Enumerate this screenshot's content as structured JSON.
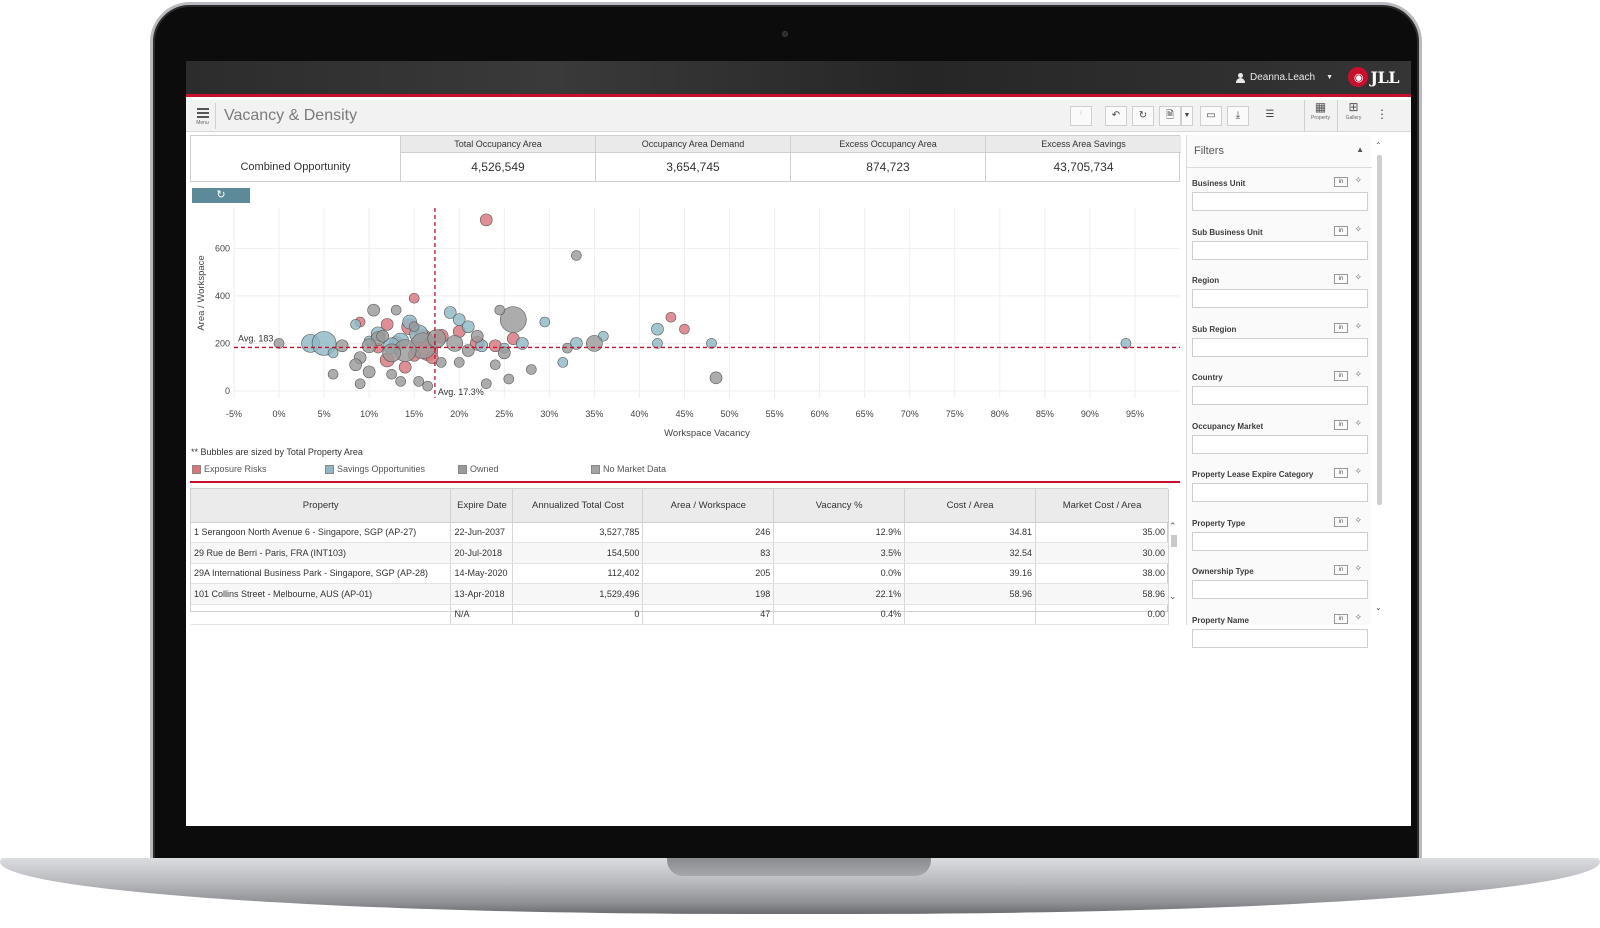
{
  "header": {
    "user_name": "Deanna.Leach",
    "logo_text": "JLL"
  },
  "title_bar": {
    "menu_label": "Menu",
    "page_title": "Vacancy & Density",
    "property_label": "Property",
    "gallery_label": "Gallery"
  },
  "summary": {
    "row_label": "Combined Opportunity",
    "columns": [
      {
        "header": "Total Occupancy Area",
        "value": "4,526,549"
      },
      {
        "header": "Occupancy Area Demand",
        "value": "3,654,745"
      },
      {
        "header": "Excess Occupancy Area",
        "value": "874,723"
      },
      {
        "header": "Excess Area Savings",
        "value": "43,705,734"
      }
    ]
  },
  "reset_zoom_icon": "refresh-icon",
  "chart_data": {
    "type": "scatter",
    "xlabel": "Workspace Vacancy",
    "ylabel": "Area / Workspace",
    "xlim": [
      -5,
      100
    ],
    "ylim": [
      -30,
      770
    ],
    "x_ticks": [
      "-5%",
      "0%",
      "5%",
      "10%",
      "15%",
      "20%",
      "25%",
      "30%",
      "35%",
      "40%",
      "45%",
      "50%",
      "55%",
      "60%",
      "65%",
      "70%",
      "75%",
      "80%",
      "85%",
      "90%",
      "95%"
    ],
    "y_ticks": [
      "0",
      "200",
      "400",
      "600"
    ],
    "grid": true,
    "avg_x": 17.3,
    "avg_y": 183,
    "avg_x_label": "Avg. 17.3%",
    "avg_y_label": "Avg. 183",
    "series": [
      {
        "name": "Exposure Risks",
        "color": "#d9757f",
        "points": [
          [
            23,
            720,
            6
          ],
          [
            15,
            390,
            5
          ],
          [
            14.5,
            270,
            8
          ],
          [
            12,
            280,
            6
          ],
          [
            16,
            220,
            9
          ],
          [
            18,
            230,
            7
          ],
          [
            13,
            200,
            7
          ],
          [
            16.5,
            170,
            10
          ],
          [
            12,
            130,
            7
          ],
          [
            14,
            100,
            6
          ],
          [
            17,
            140,
            6
          ],
          [
            20,
            250,
            6
          ],
          [
            22,
            200,
            7
          ],
          [
            24,
            190,
            6
          ],
          [
            26,
            220,
            6
          ],
          [
            43.5,
            310,
            5
          ],
          [
            45,
            260,
            5
          ],
          [
            9,
            290,
            5
          ],
          [
            11,
            180,
            5
          ],
          [
            15,
            150,
            6
          ]
        ]
      },
      {
        "name": "Savings Opportunities",
        "color": "#8fb8c4",
        "points": [
          [
            3.5,
            200,
            9
          ],
          [
            5,
            200,
            12
          ],
          [
            11,
            240,
            7
          ],
          [
            13.5,
            210,
            8
          ],
          [
            14.5,
            290,
            7
          ],
          [
            12.5,
            190,
            8
          ],
          [
            15.5,
            240,
            9
          ],
          [
            19,
            330,
            6
          ],
          [
            20,
            300,
            6
          ],
          [
            21,
            270,
            6
          ],
          [
            22.5,
            190,
            6
          ],
          [
            27,
            200,
            6
          ],
          [
            29.5,
            290,
            5
          ],
          [
            33,
            200,
            6
          ],
          [
            36,
            230,
            5
          ],
          [
            42,
            260,
            6
          ],
          [
            42,
            200,
            5
          ],
          [
            48,
            200,
            5
          ],
          [
            94,
            200,
            5
          ],
          [
            6,
            160,
            5
          ],
          [
            10,
            210,
            5
          ],
          [
            25,
            180,
            5
          ],
          [
            31.5,
            120,
            5
          ],
          [
            8.5,
            280,
            5
          ]
        ]
      },
      {
        "name": "Owned",
        "color": "#9a9a9a",
        "points": [
          [
            33,
            570,
            5
          ],
          [
            26,
            300,
            13
          ],
          [
            16,
            190,
            13
          ],
          [
            14,
            170,
            11
          ],
          [
            12.5,
            160,
            9
          ],
          [
            17.5,
            220,
            9
          ],
          [
            19.5,
            200,
            8
          ],
          [
            11,
            220,
            7
          ],
          [
            10,
            190,
            7
          ],
          [
            9,
            140,
            6
          ],
          [
            8.5,
            110,
            6
          ],
          [
            10,
            80,
            6
          ],
          [
            7,
            190,
            6
          ],
          [
            6,
            70,
            5
          ],
          [
            9,
            30,
            5
          ],
          [
            12.5,
            70,
            5
          ],
          [
            13.5,
            40,
            5
          ],
          [
            15.5,
            40,
            5
          ],
          [
            16.5,
            20,
            5
          ],
          [
            23,
            30,
            5
          ],
          [
            24,
            110,
            5
          ],
          [
            25,
            160,
            6
          ],
          [
            32,
            180,
            5
          ],
          [
            35,
            200,
            8
          ],
          [
            48.5,
            55,
            6
          ],
          [
            25.5,
            50,
            5
          ],
          [
            18,
            120,
            5
          ],
          [
            21,
            170,
            6
          ],
          [
            20,
            120,
            5
          ],
          [
            22,
            230,
            6
          ],
          [
            24.5,
            340,
            5
          ],
          [
            10.5,
            340,
            6
          ],
          [
            13,
            340,
            5
          ],
          [
            0,
            200,
            5
          ],
          [
            11.5,
            230,
            6
          ],
          [
            15,
            270,
            5
          ],
          [
            28,
            90,
            5
          ]
        ]
      },
      {
        "name": "No Market Data",
        "color": "#a3a3a3",
        "points": []
      }
    ],
    "legend_position": "bottom-left",
    "note": "** Bubbles are sized by Total Property Area"
  },
  "legend_colors": {
    "exposure": "#d9757f",
    "savings": "#8fb8c4",
    "owned": "#9a9a9a",
    "no_market": "#a3a3a3"
  },
  "table": {
    "headers": [
      "Property",
      "Expire Date",
      "Annualized Total Cost",
      "Area / Workspace",
      "Vacancy %",
      "Cost / Area",
      "Market Cost / Area"
    ],
    "rows": [
      [
        "1 Serangoon North Avenue 6 - Singapore, SGP (AP-27)",
        "22-Jun-2037",
        "3,527,785",
        "246",
        "12.9%",
        "34.81",
        "35.00"
      ],
      [
        "29 Rue de Berri - Paris, FRA (INT103)",
        "20-Jul-2018",
        "154,500",
        "83",
        "3.5%",
        "32.54",
        "30.00"
      ],
      [
        "29A International Business Park - Singapore, SGP (AP-28)",
        "14-May-2020",
        "112,402",
        "205",
        "0.0%",
        "39.16",
        "38.00"
      ],
      [
        "101 Collins Street - Melbourne, AUS (AP-01)",
        "13-Apr-2018",
        "1,529,496",
        "198",
        "22.1%",
        "58.96",
        "58.96"
      ],
      [
        "",
        "N/A",
        "0",
        "47",
        "0.4%",
        "",
        "0.00"
      ]
    ]
  },
  "filters": {
    "title": "Filters",
    "items": [
      {
        "label": "Business Unit"
      },
      {
        "label": "Sub Business Unit"
      },
      {
        "label": "Region"
      },
      {
        "label": "Sub Region"
      },
      {
        "label": "Country"
      },
      {
        "label": "Occupancy Market"
      },
      {
        "label": "Property Lease Expire Category"
      },
      {
        "label": "Property Type"
      },
      {
        "label": "Ownership Type"
      },
      {
        "label": "Property Name"
      }
    ],
    "in_label": "in"
  }
}
